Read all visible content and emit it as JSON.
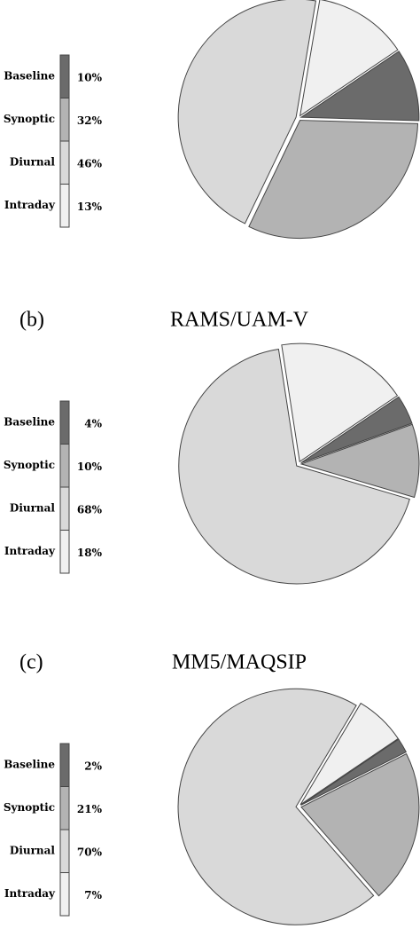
{
  "chart_data": [
    {
      "type": "pie",
      "categories": [
        "Baseline",
        "Synoptic",
        "Diurnal",
        "Intraday"
      ],
      "values": [
        10,
        32,
        46,
        13
      ],
      "value_labels": [
        "10%",
        "32%",
        "46%",
        "13%"
      ],
      "colors": [
        "#6b6b6b",
        "#b3b3b3",
        "#d9d9d9",
        "#f0f0f0"
      ]
    },
    {
      "type": "pie",
      "panel": "(b)",
      "title": "RAMS/UAM-V",
      "categories": [
        "Baseline",
        "Synoptic",
        "Diurnal",
        "Intraday"
      ],
      "values": [
        4,
        10,
        68,
        18
      ],
      "value_labels": [
        "4%",
        "10%",
        "68%",
        "18%"
      ],
      "colors": [
        "#6b6b6b",
        "#b3b3b3",
        "#d9d9d9",
        "#f0f0f0"
      ]
    },
    {
      "type": "pie",
      "panel": "(c)",
      "title": "MM5/MAQSIP",
      "categories": [
        "Baseline",
        "Synoptic",
        "Diurnal",
        "Intraday"
      ],
      "values": [
        2,
        21,
        70,
        7
      ],
      "value_labels": [
        "2%",
        "21%",
        "70%",
        "7%"
      ],
      "colors": [
        "#6b6b6b",
        "#b3b3b3",
        "#d9d9d9",
        "#f0f0f0"
      ]
    }
  ]
}
